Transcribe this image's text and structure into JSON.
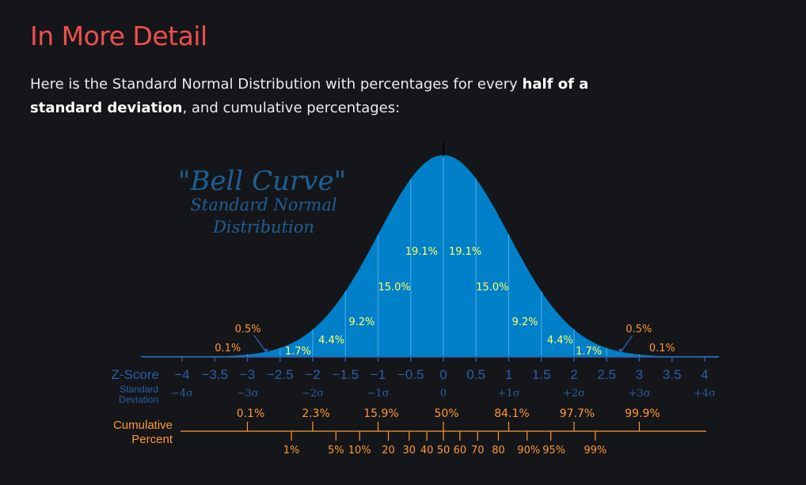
{
  "page": {
    "title": "In More Detail",
    "intro_prefix": "Here is the Standard Normal Distribution with percentages for every ",
    "intro_bold1": "half of a",
    "intro_bold2": "standard deviation",
    "intro_suffix": ", and cumulative percentages:"
  },
  "chart_data": {
    "type": "area",
    "title": "\"Bell Curve\"",
    "subtitle_line1": "Standard Normal",
    "subtitle_line2": "Distribution",
    "colors": {
      "curve": "#0080c8",
      "band_label": "#ffff66",
      "tail_label": "#ff9933",
      "axis": "#2b5fa8",
      "cumulative": "#ff9933"
    },
    "zscore_label": "Z-Score",
    "sd_label_line1": "Standard",
    "sd_label_line2": "Deviation",
    "zscore_ticks": [
      {
        "x": -4,
        "label": "−4"
      },
      {
        "x": -3.5,
        "label": "−3.5"
      },
      {
        "x": -3,
        "label": "−3"
      },
      {
        "x": -2.5,
        "label": "−2.5"
      },
      {
        "x": -2,
        "label": "−2"
      },
      {
        "x": -1.5,
        "label": "−1.5"
      },
      {
        "x": -1,
        "label": "−1"
      },
      {
        "x": -0.5,
        "label": "−0.5"
      },
      {
        "x": 0,
        "label": "0"
      },
      {
        "x": 0.5,
        "label": "0.5"
      },
      {
        "x": 1,
        "label": "1"
      },
      {
        "x": 1.5,
        "label": "1.5"
      },
      {
        "x": 2,
        "label": "2"
      },
      {
        "x": 2.5,
        "label": "2.5"
      },
      {
        "x": 3,
        "label": "3"
      },
      {
        "x": 3.5,
        "label": "3.5"
      },
      {
        "x": 4,
        "label": "4"
      }
    ],
    "sd_ticks": [
      {
        "x": -4,
        "label": "−4σ"
      },
      {
        "x": -3,
        "label": "−3σ"
      },
      {
        "x": -2,
        "label": "−2σ"
      },
      {
        "x": -1,
        "label": "−1σ"
      },
      {
        "x": 0,
        "label": "0"
      },
      {
        "x": 1,
        "label": "+1σ"
      },
      {
        "x": 2,
        "label": "+2σ"
      },
      {
        "x": 3,
        "label": "+3σ"
      },
      {
        "x": 4,
        "label": "+4σ"
      }
    ],
    "band_percents": [
      {
        "from": -3,
        "to": -2.5,
        "label": "0.5%"
      },
      {
        "from": -2.5,
        "to": -2,
        "label": "1.7%"
      },
      {
        "from": -2,
        "to": -1.5,
        "label": "4.4%"
      },
      {
        "from": -1.5,
        "to": -1,
        "label": "9.2%"
      },
      {
        "from": -1,
        "to": -0.5,
        "label": "15.0%"
      },
      {
        "from": -0.5,
        "to": 0,
        "label": "19.1%"
      },
      {
        "from": 0,
        "to": 0.5,
        "label": "19.1%"
      },
      {
        "from": 0.5,
        "to": 1,
        "label": "15.0%"
      },
      {
        "from": 1,
        "to": 1.5,
        "label": "9.2%"
      },
      {
        "from": 1.5,
        "to": 2,
        "label": "4.4%"
      },
      {
        "from": 2,
        "to": 2.5,
        "label": "1.7%"
      },
      {
        "from": 2.5,
        "to": 3,
        "label": "0.5%"
      }
    ],
    "tail_percents": [
      {
        "side": "left",
        "label": "0.1%"
      },
      {
        "side": "right",
        "label": "0.1%"
      }
    ],
    "cumulative_label_line1": "Cumulative",
    "cumulative_label_line2": "Percent",
    "cumulative_major": [
      {
        "z": -3,
        "label": "0.1%"
      },
      {
        "z": -2,
        "label": "2.3%"
      },
      {
        "z": -1,
        "label": "15.9%"
      },
      {
        "z": 0,
        "label": "50%"
      },
      {
        "z": 1,
        "label": "84.1%"
      },
      {
        "z": 2,
        "label": "97.7%"
      },
      {
        "z": 3,
        "label": "99.9%"
      }
    ],
    "cumulative_minor": [
      {
        "z": -2.326,
        "label": "1%"
      },
      {
        "z": -1.645,
        "label": "5%"
      },
      {
        "z": -1.282,
        "label": "10%"
      },
      {
        "z": -0.842,
        "label": "20"
      },
      {
        "z": -0.524,
        "label": "30"
      },
      {
        "z": -0.253,
        "label": "40"
      },
      {
        "z": 0,
        "label": "50"
      },
      {
        "z": 0.253,
        "label": "60"
      },
      {
        "z": 0.524,
        "label": "70"
      },
      {
        "z": 0.842,
        "label": "80"
      },
      {
        "z": 1.282,
        "label": "90%"
      },
      {
        "z": 1.645,
        "label": "95%"
      },
      {
        "z": 2.326,
        "label": "99%"
      }
    ],
    "xlim": [
      -4,
      4
    ]
  }
}
